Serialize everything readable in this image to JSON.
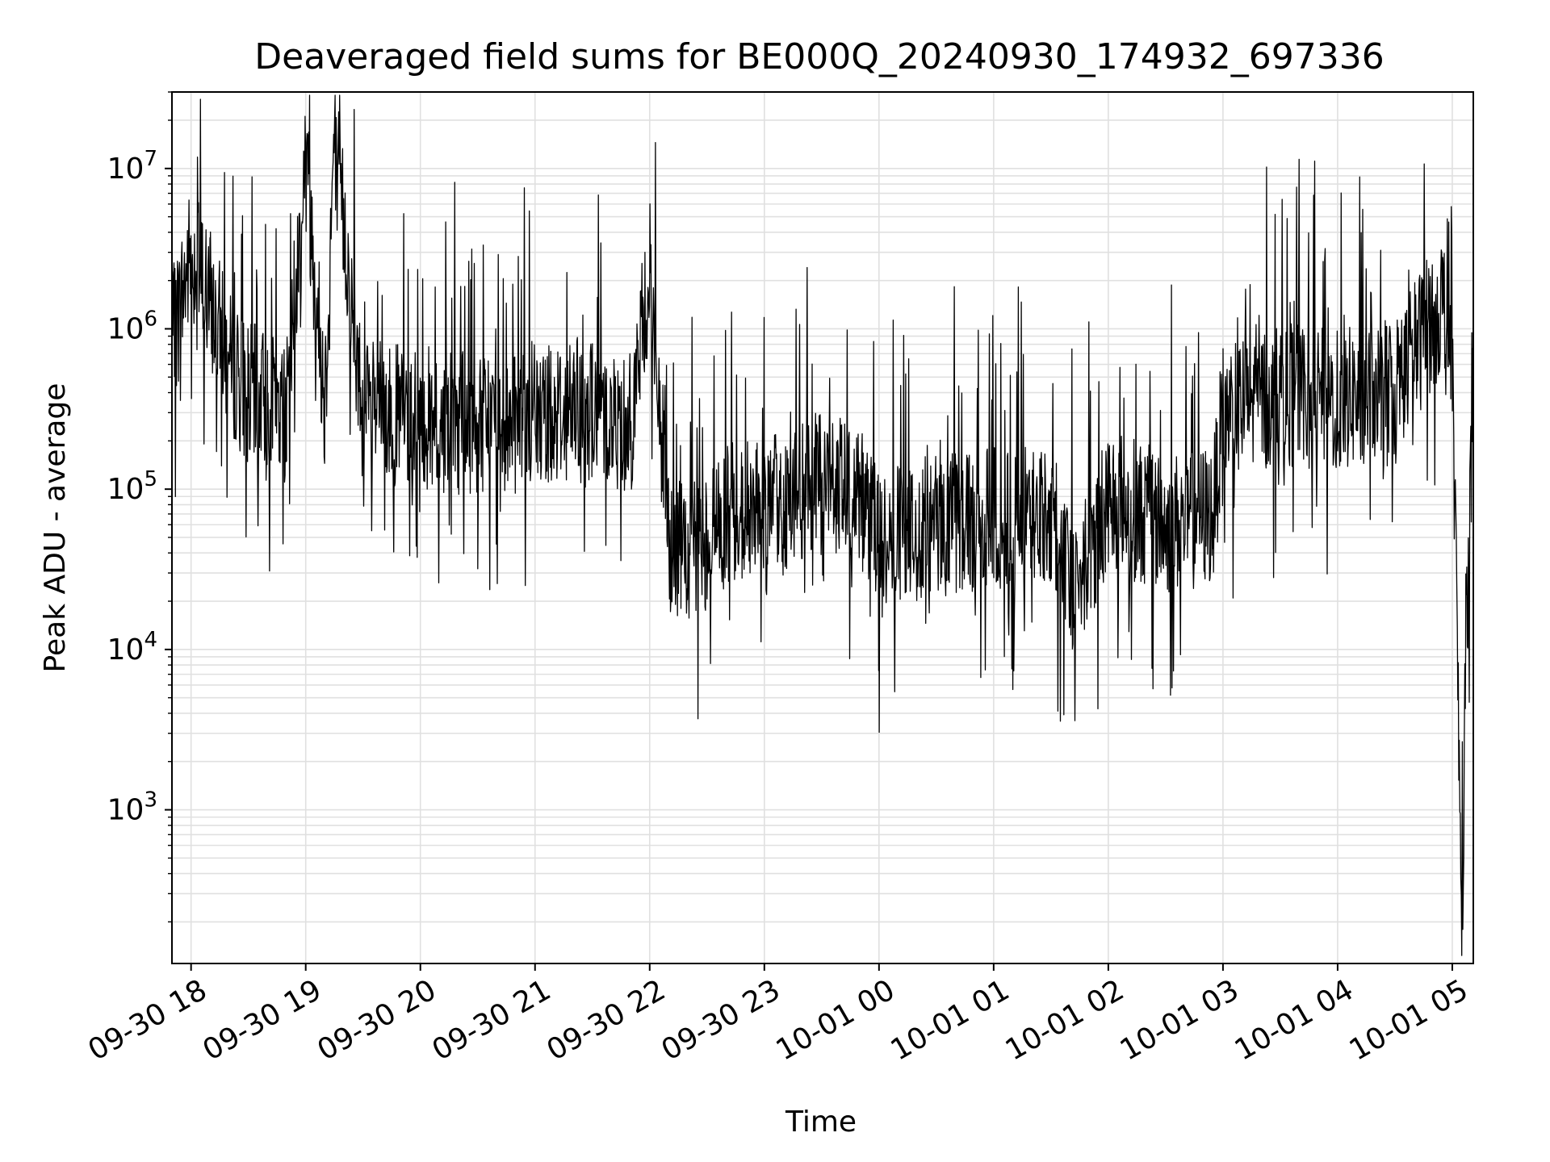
{
  "chart_data": {
    "type": "line",
    "title": "Deaveraged field sums for BE000Q_20240930_174932_697336",
    "xlabel": "Time",
    "ylabel": "Peak ADU - average",
    "xlim": [
      "2024-09-30 17:50",
      "2024-10-01 05:11"
    ],
    "ylim": [
      110,
      30000000
    ],
    "yscale": "log",
    "grid": true,
    "x_ticks": [
      "09-30 18",
      "09-30 19",
      "09-30 20",
      "09-30 21",
      "09-30 22",
      "09-30 23",
      "10-01 00",
      "10-01 01",
      "10-01 02",
      "10-01 03",
      "10-01 04",
      "10-01 05"
    ],
    "y_ticks": [
      {
        "base": "10",
        "exp": "3",
        "value": 1000
      },
      {
        "base": "10",
        "exp": "4",
        "value": 10000
      },
      {
        "base": "10",
        "exp": "5",
        "value": 100000
      },
      {
        "base": "10",
        "exp": "6",
        "value": 1000000
      },
      {
        "base": "10",
        "exp": "7",
        "value": 10000000
      }
    ],
    "series": [
      {
        "color": "#000000",
        "points": [
          [
            "2024-09-30 17:50",
            800000
          ],
          [
            "2024-09-30 18:00",
            3000000
          ],
          [
            "2024-09-30 18:10",
            1500000
          ],
          [
            "2024-09-30 18:20",
            600000
          ],
          [
            "2024-09-30 18:30",
            400000
          ],
          [
            "2024-09-30 18:40",
            350000
          ],
          [
            "2024-09-30 18:50",
            300000
          ],
          [
            "2024-09-30 19:00",
            12000000
          ],
          [
            "2024-09-30 19:10",
            350000
          ],
          [
            "2024-09-30 19:15",
            17000000
          ],
          [
            "2024-09-30 19:30",
            300000
          ],
          [
            "2024-09-30 20:00",
            280000
          ],
          [
            "2024-09-30 20:30",
            250000
          ],
          [
            "2024-09-30 21:00",
            300000
          ],
          [
            "2024-09-30 21:30",
            320000
          ],
          [
            "2024-09-30 21:50",
            250000
          ],
          [
            "2024-09-30 22:00",
            2300000
          ],
          [
            "2024-09-30 22:10",
            50000
          ],
          [
            "2024-09-30 22:20",
            35000
          ],
          [
            "2024-09-30 22:40",
            70000
          ],
          [
            "2024-09-30 23:00",
            75000
          ],
          [
            "2024-09-30 23:30",
            110000
          ],
          [
            "2024-09-30 23:50",
            90000
          ],
          [
            "2024-10-01 00:00",
            45000
          ],
          [
            "2024-10-01 00:30",
            60000
          ],
          [
            "2024-10-01 01:00",
            65000
          ],
          [
            "2024-10-01 01:30",
            70000
          ],
          [
            "2024-10-01 01:40",
            25000
          ],
          [
            "2024-10-01 01:50",
            40000
          ],
          [
            "2024-10-01 02:00",
            90000
          ],
          [
            "2024-10-01 02:30",
            60000
          ],
          [
            "2024-10-01 02:55",
            70000
          ],
          [
            "2024-10-01 03:00",
            300000
          ],
          [
            "2024-10-01 03:30",
            400000
          ],
          [
            "2024-10-01 04:00",
            350000
          ],
          [
            "2024-10-01 04:30",
            450000
          ],
          [
            "2024-10-01 04:55",
            1500000
          ],
          [
            "2024-10-01 05:00",
            800000
          ],
          [
            "2024-10-01 05:05",
            180
          ],
          [
            "2024-10-01 05:07",
            10000
          ],
          [
            "2024-10-01 05:11",
            400000
          ]
        ]
      }
    ]
  }
}
